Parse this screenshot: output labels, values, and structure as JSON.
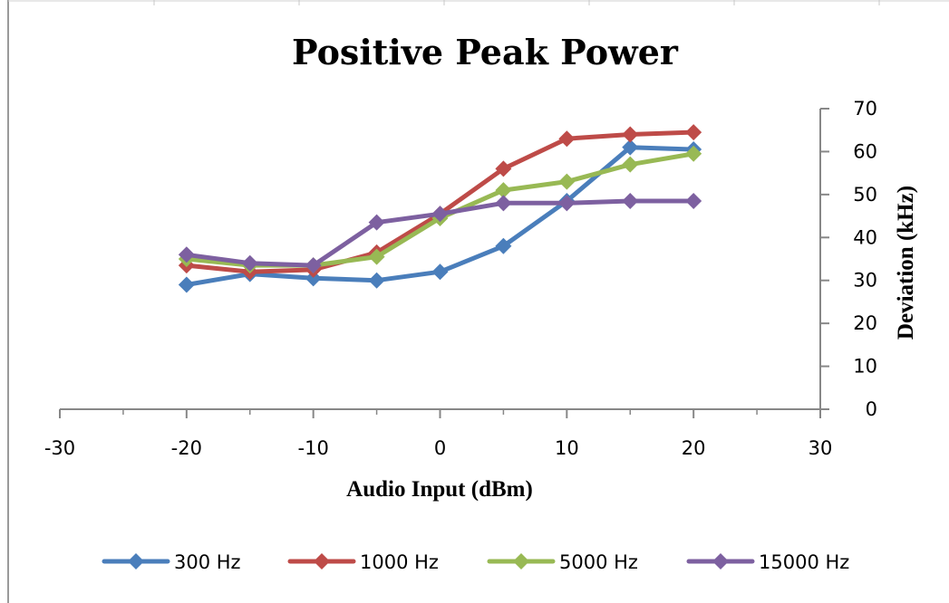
{
  "chart_data": {
    "type": "line",
    "title": "Positive Peak Power",
    "xlabel": "Audio Input (dBm)",
    "ylabel": "Deviation (kHz)",
    "xlim": [
      -30,
      30
    ],
    "ylim": [
      0,
      70
    ],
    "x_ticks": [
      -30,
      -20,
      -10,
      0,
      10,
      20,
      30
    ],
    "y_ticks": [
      0,
      10,
      20,
      30,
      40,
      50,
      60,
      70
    ],
    "x_tick_labels": [
      "-30",
      "-20",
      "-10",
      "0",
      "10",
      "20",
      "30"
    ],
    "y_tick_labels": [
      "0",
      "10",
      "20",
      "30",
      "40",
      "50",
      "60",
      "70"
    ],
    "x": [
      -20,
      -15,
      -10,
      -5,
      0,
      5,
      10,
      15,
      20
    ],
    "series": [
      {
        "name": "300 Hz",
        "color": "#4a7ebb",
        "values": [
          29,
          31.5,
          30.5,
          30,
          32,
          38,
          48.5,
          61,
          60.5
        ]
      },
      {
        "name": "1000 Hz",
        "color": "#be4b48",
        "values": [
          33.5,
          32,
          32.5,
          36.5,
          45.5,
          56,
          63,
          64,
          64.5
        ]
      },
      {
        "name": "5000 Hz",
        "color": "#98b954",
        "values": [
          35,
          33.5,
          33.5,
          35.5,
          44.5,
          51,
          53,
          57,
          59.5
        ]
      },
      {
        "name": "15000 Hz",
        "color": "#7d60a0",
        "values": [
          36,
          34,
          33.5,
          43.5,
          45.5,
          48,
          48,
          48.5,
          48.5
        ]
      }
    ],
    "grid": false,
    "legend_position": "bottom"
  }
}
